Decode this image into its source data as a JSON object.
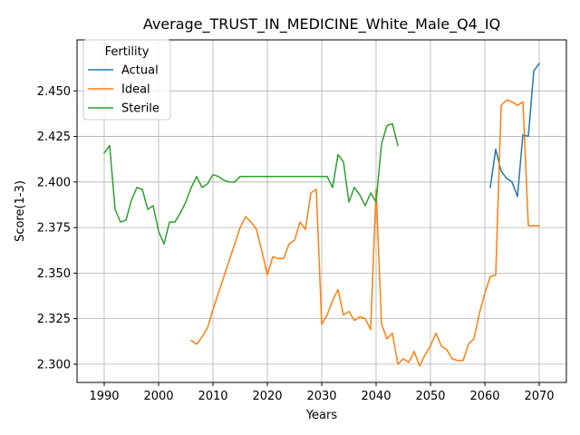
{
  "chart_data": {
    "type": "line",
    "title": "Average_TRUST_IN_MEDICINE_White_Male_Q4_IQ",
    "xlabel": "Years",
    "ylabel": "Score(1-3)",
    "xlim": [
      1985,
      2075
    ],
    "ylim": [
      2.29,
      2.478
    ],
    "xticks": [
      1990,
      2000,
      2010,
      2020,
      2030,
      2040,
      2050,
      2060,
      2070
    ],
    "yticks": [
      2.3,
      2.325,
      2.35,
      2.375,
      2.4,
      2.425,
      2.45
    ],
    "ytick_labels": [
      "2.300",
      "2.325",
      "2.350",
      "2.375",
      "2.400",
      "2.425",
      "2.450"
    ],
    "grid": true,
    "legend": {
      "title": "Fertility",
      "position": "top-left"
    },
    "series": [
      {
        "name": "Actual",
        "color": "#1f77b4",
        "x": [
          2061,
          2062,
          2063,
          2064,
          2065,
          2066,
          2067,
          2068,
          2069,
          2070
        ],
        "y": [
          2.397,
          2.418,
          2.406,
          2.402,
          2.4,
          2.392,
          2.426,
          2.425,
          2.461,
          2.465
        ]
      },
      {
        "name": "Ideal",
        "color": "#ff7f0e",
        "x": [
          2006,
          2007,
          2008,
          2009,
          2010,
          2011,
          2012,
          2013,
          2014,
          2015,
          2016,
          2017,
          2018,
          2019,
          2020,
          2021,
          2022,
          2023,
          2024,
          2025,
          2026,
          2027,
          2028,
          2029,
          2030,
          2031,
          2032,
          2033,
          2034,
          2035,
          2036,
          2037,
          2038,
          2039,
          2040,
          2041,
          2042,
          2043,
          2044,
          2045,
          2046,
          2047,
          2048,
          2049,
          2050,
          2051,
          2052,
          2053,
          2054,
          2055,
          2056,
          2057,
          2058,
          2059,
          2060,
          2061,
          2062,
          2063,
          2064,
          2065,
          2066,
          2067,
          2068,
          2069,
          2070
        ],
        "y": [
          2.313,
          2.311,
          2.315,
          2.32,
          2.33,
          2.339,
          2.348,
          2.357,
          2.366,
          2.375,
          2.381,
          2.378,
          2.374,
          2.362,
          2.349,
          2.359,
          2.358,
          2.358,
          2.366,
          2.368,
          2.378,
          2.374,
          2.394,
          2.396,
          2.322,
          2.327,
          2.335,
          2.341,
          2.327,
          2.329,
          2.324,
          2.326,
          2.325,
          2.319,
          2.396,
          2.322,
          2.314,
          2.317,
          2.3,
          2.303,
          2.301,
          2.307,
          2.299,
          2.305,
          2.31,
          2.317,
          2.31,
          2.308,
          2.303,
          2.302,
          2.302,
          2.311,
          2.314,
          2.328,
          2.339,
          2.348,
          2.349,
          2.442,
          2.445,
          2.444,
          2.442,
          2.444,
          2.376,
          2.376,
          2.376
        ]
      },
      {
        "name": "Sterile",
        "color": "#2ca02c",
        "x": [
          1990,
          1991,
          1992,
          1993,
          1994,
          1995,
          1996,
          1997,
          1998,
          1999,
          2000,
          2001,
          2002,
          2003,
          2004,
          2005,
          2006,
          2007,
          2008,
          2009,
          2010,
          2011,
          2012,
          2013,
          2014,
          2015,
          2016,
          2017,
          2018,
          2019,
          2020,
          2021,
          2022,
          2023,
          2024,
          2025,
          2026,
          2027,
          2028,
          2029,
          2030,
          2031,
          2032,
          2033,
          2034,
          2035,
          2036,
          2037,
          2038,
          2039,
          2040,
          2041,
          2042,
          2043,
          2044
        ],
        "y": [
          2.416,
          2.42,
          2.385,
          2.378,
          2.379,
          2.39,
          2.397,
          2.396,
          2.385,
          2.387,
          2.373,
          2.366,
          2.378,
          2.378,
          2.383,
          2.389,
          2.397,
          2.403,
          2.397,
          2.399,
          2.404,
          2.403,
          2.401,
          2.4,
          2.4,
          2.403,
          2.403,
          2.403,
          2.403,
          2.403,
          2.403,
          2.403,
          2.403,
          2.403,
          2.403,
          2.403,
          2.403,
          2.403,
          2.403,
          2.403,
          2.403,
          2.403,
          2.397,
          2.415,
          2.411,
          2.389,
          2.397,
          2.393,
          2.387,
          2.394,
          2.389,
          2.421,
          2.431,
          2.432,
          2.42
        ]
      }
    ]
  }
}
